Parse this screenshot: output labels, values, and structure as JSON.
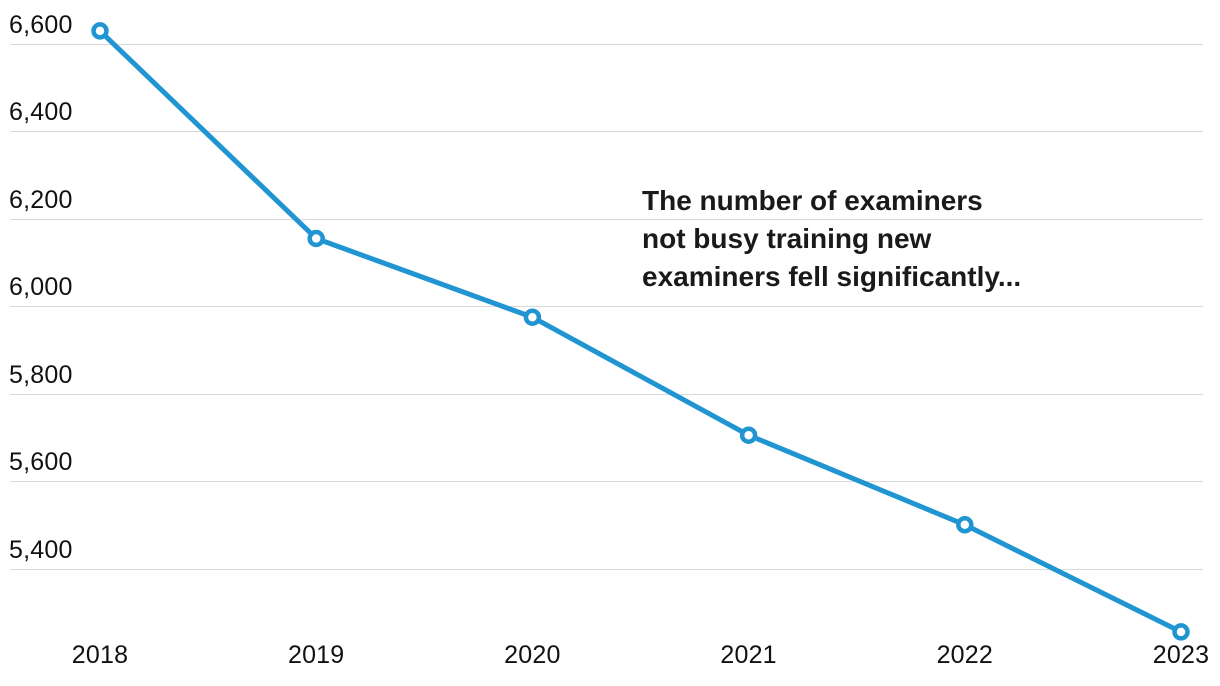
{
  "chart_data": {
    "type": "line",
    "categories": [
      "2018",
      "2019",
      "2020",
      "2021",
      "2022",
      "2023"
    ],
    "series": [
      {
        "name": "Examiners not busy training new examiners",
        "values": [
          6630,
          6155,
          5975,
          5705,
          5500,
          5255
        ]
      }
    ],
    "title": "",
    "xlabel": "",
    "ylabel": "",
    "ylim": [
      5200,
      6660
    ],
    "y_axis": {
      "tick_values": [
        6600,
        6400,
        6200,
        6000,
        5800,
        5600,
        5400
      ],
      "tick_labels": [
        "6,600",
        "6,400",
        "6,200",
        "6,000",
        "5,800",
        "5,600",
        "5,400"
      ]
    },
    "grid": "horizontal-only",
    "legend_position": "none",
    "marker": "open-circle",
    "annotation_lines": [
      "The number of examiners",
      "not busy training new",
      "examiners fell significantly..."
    ]
  },
  "colors": {
    "line": "#2095d2",
    "marker_fill": "#ffffff",
    "gridline": "#d9d9d9",
    "tick_text": "#111111",
    "annotation_text": "#1a1a1a",
    "background": "#ffffff"
  }
}
